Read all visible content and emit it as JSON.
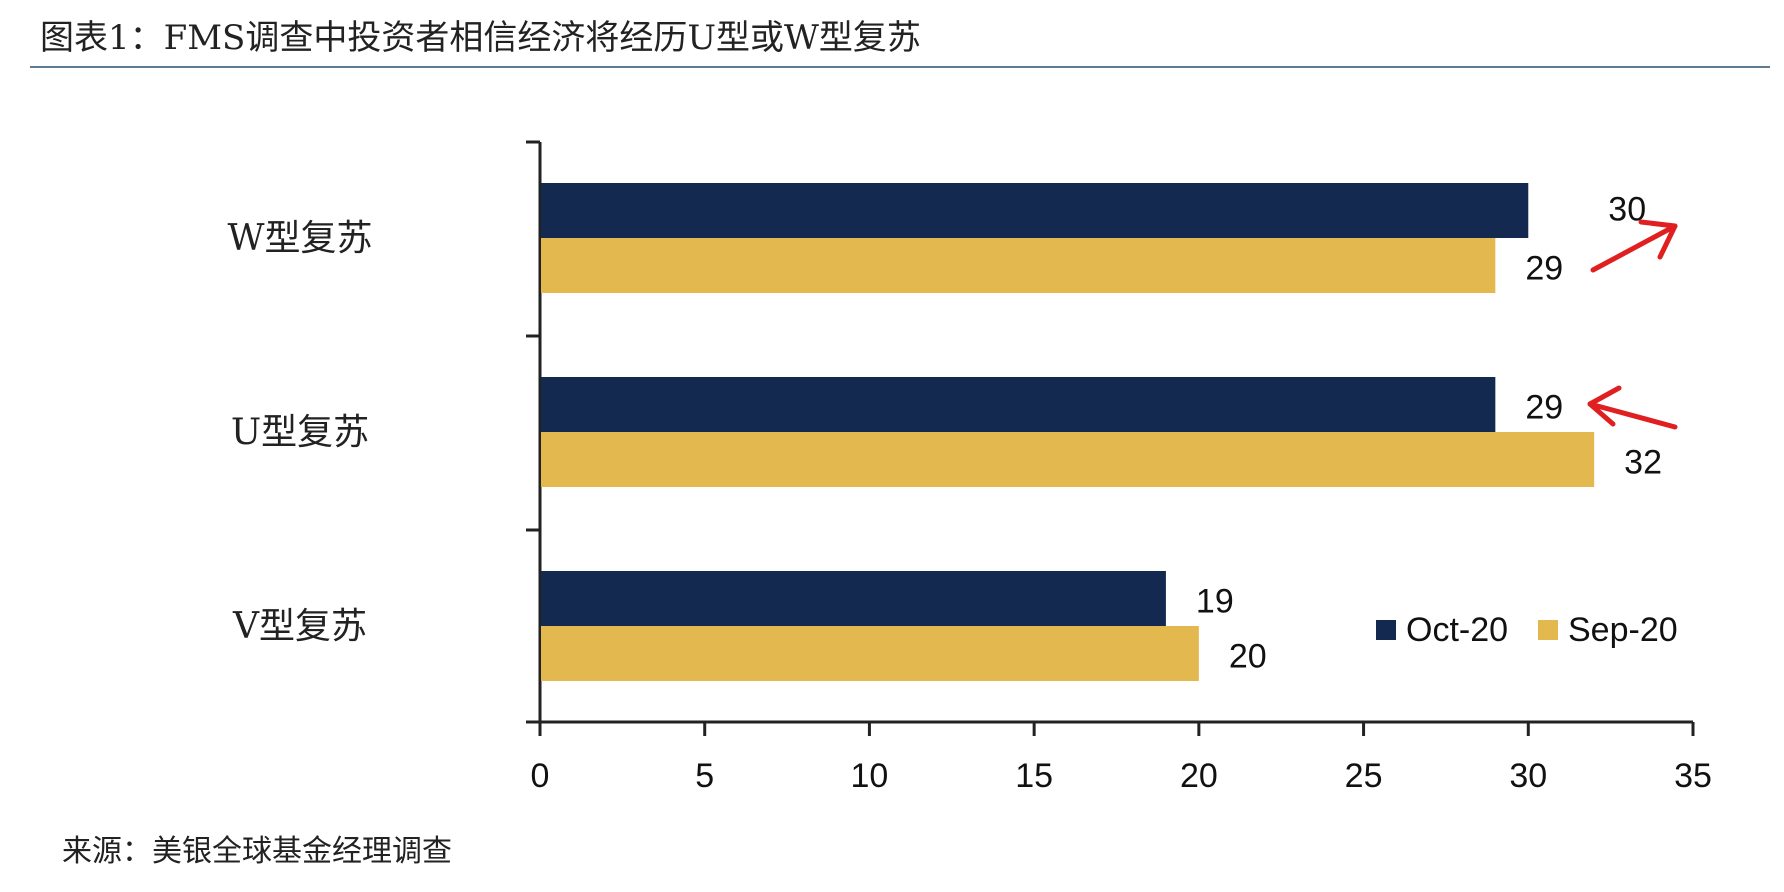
{
  "page": {
    "title": "图表1：FMS调查中投资者相信经济将经历U型或W型复苏",
    "source": "来源：美银全球基金经理调查"
  },
  "chart_data": {
    "type": "bar",
    "orientation": "horizontal",
    "categories": [
      "W型复苏",
      "U型复苏",
      "V型复苏"
    ],
    "series": [
      {
        "name": "Oct-20",
        "values": [
          30,
          29,
          19
        ],
        "color": "#13294f"
      },
      {
        "name": "Sep-20",
        "values": [
          29,
          32,
          20
        ],
        "color": "#e3b94f"
      }
    ],
    "data_labels": {
      "Oct-20": [
        "30",
        "29",
        "19"
      ],
      "Sep-20": [
        "29",
        "32",
        "20"
      ]
    },
    "xlim": [
      0,
      35
    ],
    "xticks": [
      0,
      5,
      10,
      15,
      20,
      25,
      30,
      35
    ],
    "xtick_labels": [
      "0",
      "5",
      "10",
      "15",
      "20",
      "25",
      "30",
      "35"
    ],
    "legend_placement": "bottom-right",
    "grid": false,
    "annotations": [
      {
        "type": "arrow",
        "color": "#e02020",
        "direction": "up-right",
        "category": "W型复苏"
      },
      {
        "type": "arrow",
        "color": "#e02020",
        "direction": "left",
        "category": "U型复苏"
      }
    ]
  }
}
